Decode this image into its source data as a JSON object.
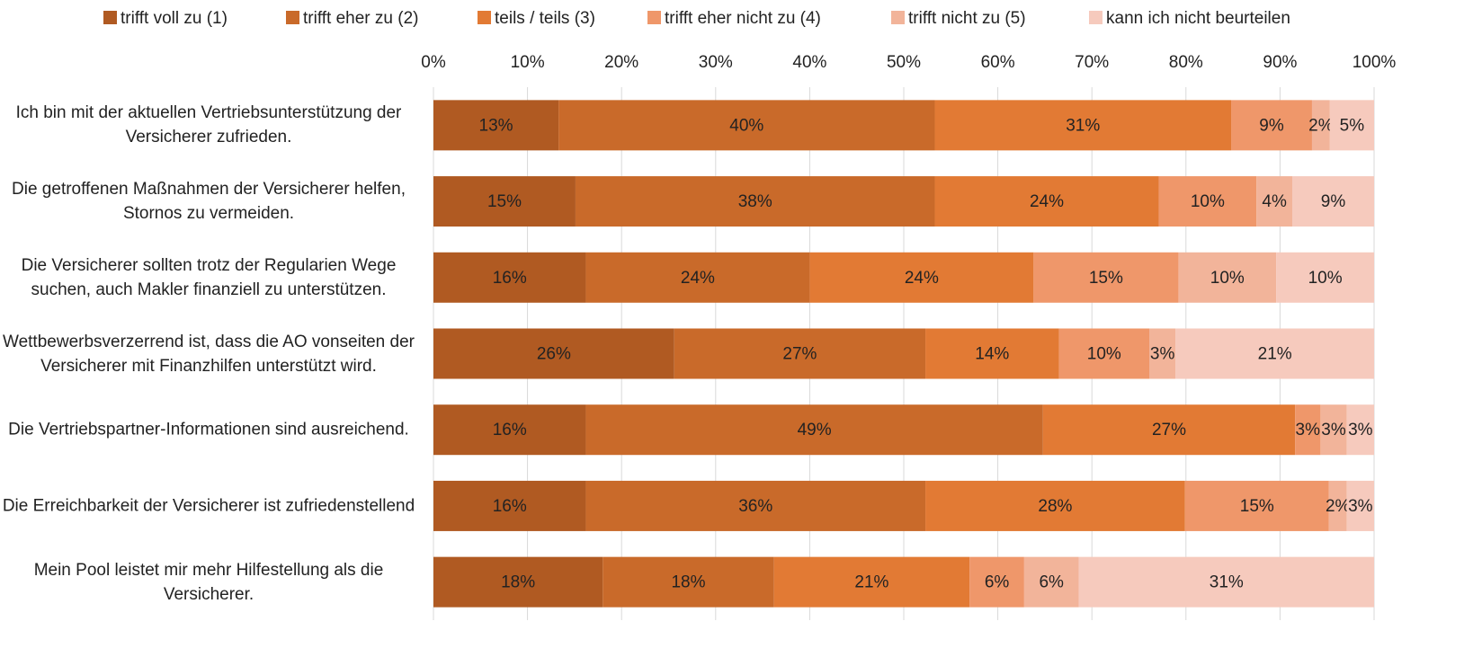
{
  "chart_data": {
    "type": "stacked_bar_horizontal",
    "categories": [
      "Ich bin mit der aktuellen Vertriebsunterstützung der Versicherer zufrieden.",
      "Die getroffenen Maßnahmen der Versicherer helfen, Stornos zu vermeiden.",
      "Die Versicherer sollten trotz der Regularien Wege suchen, auch Makler finanziell zu unterstützen.",
      "Wettbewerbsverzerrend ist, dass die AO vonseiten der Versicherer mit Finanzhilfen unterstützt wird.",
      "Die Vertriebspartner-Informationen sind ausreichend.",
      "Die Erreichbarkeit der Versicherer ist zufriedenstellend",
      "Mein Pool leistet mir mehr Hilfestellung als die Versicherer."
    ],
    "series": [
      {
        "name": "trifft voll zu (1)",
        "color": "#b05a22",
        "values": [
          13.3,
          15.1,
          16.2,
          25.6,
          16.2,
          16.2,
          18.0
        ],
        "value_labels": [
          "13%",
          "15%",
          "16%",
          "26%",
          "16%",
          "16%",
          "18%"
        ]
      },
      {
        "name": "trifft eher zu (2)",
        "color": "#c96a2a",
        "values": [
          40.0,
          38.2,
          23.8,
          26.7,
          48.6,
          36.1,
          18.2
        ],
        "value_labels": [
          "40%",
          "38%",
          "24%",
          "27%",
          "49%",
          "36%",
          "18%"
        ]
      },
      {
        "name": "teils / teils (3)",
        "color": "#e27a34",
        "values": [
          31.5,
          23.8,
          23.8,
          14.2,
          26.8,
          27.6,
          20.8
        ],
        "value_labels": [
          "31%",
          "24%",
          "24%",
          "14%",
          "27%",
          "28%",
          "21%"
        ]
      },
      {
        "name": "trifft eher nicht zu (4)",
        "color": "#ef976a",
        "values": [
          8.6,
          10.4,
          15.4,
          9.6,
          2.7,
          15.3,
          5.8
        ],
        "value_labels": [
          "9%",
          "10%",
          "15%",
          "10%",
          "3%",
          "15%",
          "6%"
        ]
      },
      {
        "name": "trifft nicht zu (5)",
        "color": "#f2b49a",
        "values": [
          1.9,
          3.8,
          10.4,
          2.8,
          2.8,
          1.9,
          5.8
        ],
        "value_labels": [
          "2%",
          "4%",
          "10%",
          "3%",
          "3%",
          "2%",
          "6%"
        ]
      },
      {
        "name": "kann ich nicht beurteilen",
        "color": "#f6cabd",
        "values": [
          4.7,
          8.7,
          10.4,
          21.1,
          2.9,
          2.9,
          31.4
        ],
        "value_labels": [
          "5%",
          "9%",
          "10%",
          "21%",
          "3%",
          "3%",
          "31%"
        ]
      }
    ],
    "xlim": [
      0,
      100
    ],
    "xticks": [
      {
        "value": 0,
        "label": "0%"
      },
      {
        "value": 10,
        "label": "10%"
      },
      {
        "value": 20,
        "label": "20%"
      },
      {
        "value": 30,
        "label": "30%"
      },
      {
        "value": 40,
        "label": "40%"
      },
      {
        "value": 50,
        "label": "50%"
      },
      {
        "value": 60,
        "label": "60%"
      },
      {
        "value": 70,
        "label": "70%"
      },
      {
        "value": 80,
        "label": "80%"
      },
      {
        "value": 90,
        "label": "90%"
      },
      {
        "value": 100,
        "label": "100%"
      }
    ],
    "grid": true,
    "legend": "top"
  }
}
